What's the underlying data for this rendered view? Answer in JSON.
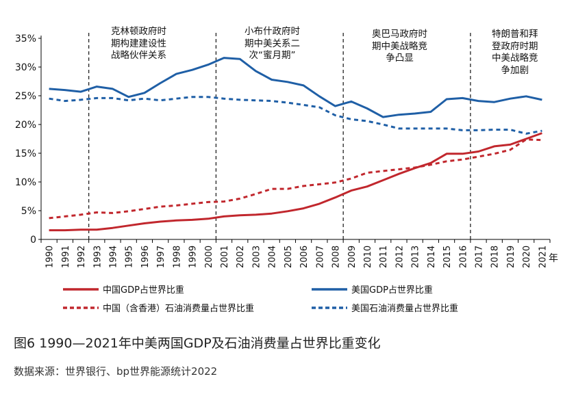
{
  "chart_data": {
    "type": "line",
    "y_unit": "%",
    "ylim": [
      0,
      35
    ],
    "y_ticks": [
      0,
      5,
      10,
      15,
      20,
      25,
      30,
      35
    ],
    "y_tick_labels": [
      "0",
      "5%",
      "10%",
      "15%",
      "20%",
      "25%",
      "30%",
      "35%"
    ],
    "x_unit": "年",
    "x": [
      "1990",
      "1991",
      "1992",
      "1993",
      "1994",
      "1995",
      "1996",
      "1997",
      "1998",
      "1999",
      "2000",
      "2001",
      "2002",
      "2003",
      "2004",
      "2005",
      "2006",
      "2007",
      "2008",
      "2009",
      "2010",
      "2011",
      "2012",
      "2013",
      "2014",
      "2015",
      "2016",
      "2017",
      "2018",
      "2019",
      "2020",
      "2021"
    ],
    "series": [
      {
        "name": "中国GDP占世界比重",
        "color": "#c1272d",
        "style": "solid",
        "values": [
          1.6,
          1.6,
          1.7,
          1.7,
          2.0,
          2.4,
          2.8,
          3.1,
          3.3,
          3.4,
          3.6,
          4.0,
          4.2,
          4.3,
          4.5,
          4.9,
          5.4,
          6.2,
          7.3,
          8.5,
          9.2,
          10.3,
          11.4,
          12.4,
          13.3,
          14.9,
          14.9,
          15.3,
          16.2,
          16.5,
          17.5,
          18.5
        ]
      },
      {
        "name": "美国GDP占世界比重",
        "color": "#1f5fa6",
        "style": "solid",
        "values": [
          26.2,
          26.0,
          25.7,
          26.6,
          26.2,
          24.8,
          25.5,
          27.2,
          28.8,
          29.5,
          30.4,
          31.6,
          31.4,
          29.3,
          27.8,
          27.4,
          26.8,
          24.9,
          23.2,
          24.0,
          22.8,
          21.3,
          21.7,
          21.9,
          22.2,
          24.4,
          24.6,
          24.1,
          23.9,
          24.5,
          24.9,
          24.3
        ]
      },
      {
        "name": "中国（含香港）石油消费量占世界比重",
        "color": "#c1272d",
        "style": "dashed",
        "values": [
          3.7,
          4.0,
          4.3,
          4.7,
          4.6,
          4.9,
          5.3,
          5.7,
          5.9,
          6.2,
          6.5,
          6.6,
          7.1,
          7.9,
          8.8,
          8.8,
          9.3,
          9.6,
          9.9,
          10.6,
          11.6,
          11.9,
          12.2,
          12.5,
          13.0,
          13.6,
          13.9,
          14.4,
          14.9,
          15.6,
          17.4,
          17.3
        ]
      },
      {
        "name": "美国石油消费量占世界比重",
        "color": "#1f5fa6",
        "style": "dashed",
        "values": [
          24.5,
          24.1,
          24.3,
          24.6,
          24.6,
          24.2,
          24.5,
          24.2,
          24.5,
          24.8,
          24.8,
          24.5,
          24.3,
          24.2,
          24.1,
          23.8,
          23.4,
          23.0,
          21.6,
          20.9,
          20.6,
          20.0,
          19.3,
          19.3,
          19.3,
          19.3,
          19.0,
          19.0,
          19.1,
          19.1,
          18.4,
          18.9
        ]
      }
    ],
    "period_dividers": [
      "1992.5",
      "2000.5",
      "2008.5",
      "2016.5"
    ],
    "annotations": [
      {
        "lines": [
          "克林顿政府时",
          "期构建建设性",
          "战略伙伴关系"
        ]
      },
      {
        "lines": [
          "小布什政府时",
          "期中美关系二",
          "次“蜜月期”"
        ]
      },
      {
        "lines": [
          "奥巴马政府时",
          "期中美战略竞",
          "争凸显"
        ]
      },
      {
        "lines": [
          "特朗普和拜",
          "登政府时期",
          "中美战略竞",
          "争加剧"
        ]
      }
    ]
  },
  "figure": {
    "title": "图6    1990—2021年中美两国GDP及石油消费量占世界比重变化",
    "source": "数据来源：世界银行、bp世界能源统计2022"
  }
}
